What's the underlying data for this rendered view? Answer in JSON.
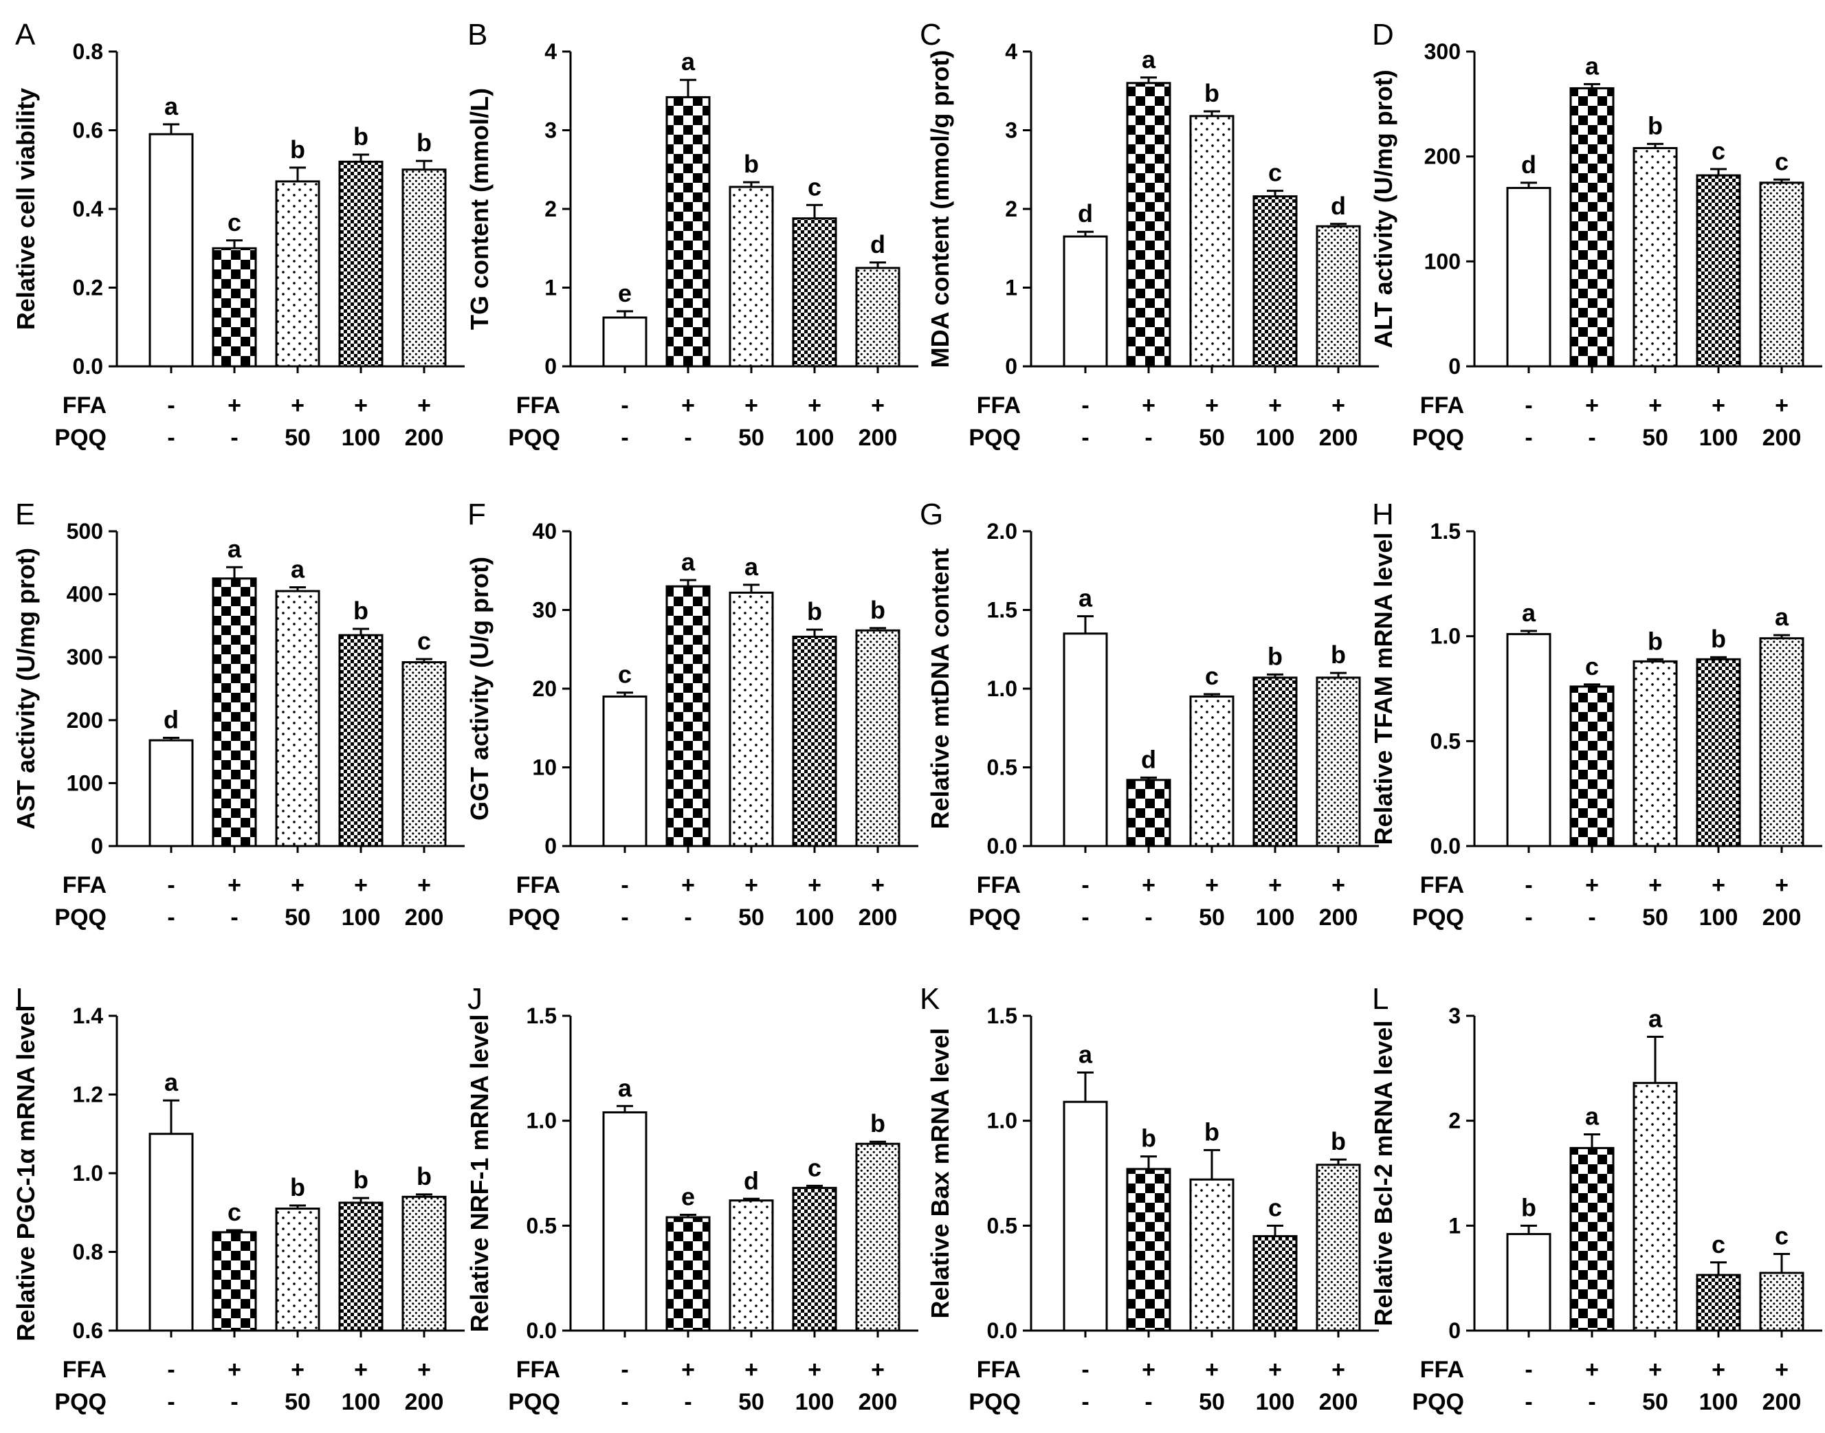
{
  "figure": {
    "conditions": {
      "rows": [
        {
          "name": "FFA",
          "values": [
            "-",
            "+",
            "+",
            "+",
            "+"
          ]
        },
        {
          "name": "PQQ",
          "values": [
            "-",
            "-",
            "50",
            "100",
            "200"
          ]
        }
      ]
    }
  },
  "chart_data": [
    {
      "panel": "A",
      "type": "bar",
      "ylabel": "Relative cell viability",
      "ylim": [
        0,
        0.8
      ],
      "yticks": [
        "0.0",
        "0.2",
        "0.4",
        "0.6",
        "0.8"
      ],
      "categories": [
        "1",
        "2",
        "3",
        "4",
        "5"
      ],
      "values": [
        0.59,
        0.3,
        0.47,
        0.52,
        0.5
      ],
      "errors": [
        0.025,
        0.02,
        0.035,
        0.018,
        0.022
      ],
      "significance": [
        "a",
        "c",
        "b",
        "b",
        "b"
      ]
    },
    {
      "panel": "B",
      "type": "bar",
      "ylabel": "TG content (mmol/L)",
      "ylim": [
        0,
        4
      ],
      "yticks": [
        "0",
        "1",
        "2",
        "3",
        "4"
      ],
      "categories": [
        "1",
        "2",
        "3",
        "4",
        "5"
      ],
      "values": [
        0.62,
        3.42,
        2.28,
        1.88,
        1.25
      ],
      "errors": [
        0.08,
        0.22,
        0.06,
        0.17,
        0.07
      ],
      "significance": [
        "e",
        "a",
        "b",
        "c",
        "d"
      ]
    },
    {
      "panel": "C",
      "type": "bar",
      "ylabel": "MDA content (mmol/g prot)",
      "ylim": [
        0,
        4
      ],
      "yticks": [
        "0",
        "1",
        "2",
        "3",
        "4"
      ],
      "categories": [
        "1",
        "2",
        "3",
        "4",
        "5"
      ],
      "values": [
        1.65,
        3.6,
        3.18,
        2.16,
        1.78
      ],
      "errors": [
        0.06,
        0.07,
        0.06,
        0.07,
        0.03
      ],
      "significance": [
        "d",
        "a",
        "b",
        "c",
        "d"
      ]
    },
    {
      "panel": "D",
      "type": "bar",
      "ylabel": "ALT activity (U/mg prot)",
      "ylim": [
        0,
        300
      ],
      "yticks": [
        "0",
        "100",
        "200",
        "300"
      ],
      "categories": [
        "1",
        "2",
        "3",
        "4",
        "5"
      ],
      "values": [
        170,
        265,
        208,
        182,
        175
      ],
      "errors": [
        5,
        4,
        4,
        6,
        3
      ],
      "significance": [
        "d",
        "a",
        "b",
        "c",
        "c"
      ]
    },
    {
      "panel": "E",
      "type": "bar",
      "ylabel": "AST activity (U/mg prot)",
      "ylim": [
        0,
        500
      ],
      "yticks": [
        "0",
        "100",
        "200",
        "300",
        "400",
        "500"
      ],
      "categories": [
        "1",
        "2",
        "3",
        "4",
        "5"
      ],
      "values": [
        168,
        425,
        405,
        335,
        292
      ],
      "errors": [
        4,
        18,
        6,
        10,
        5
      ],
      "significance": [
        "d",
        "a",
        "a",
        "b",
        "c"
      ]
    },
    {
      "panel": "F",
      "type": "bar",
      "ylabel": "GGT activity (U/g prot)",
      "ylim": [
        0,
        40
      ],
      "yticks": [
        "0",
        "10",
        "20",
        "30",
        "40"
      ],
      "categories": [
        "1",
        "2",
        "3",
        "4",
        "5"
      ],
      "values": [
        19.0,
        33.0,
        32.2,
        26.6,
        27.4
      ],
      "errors": [
        0.5,
        0.8,
        1.0,
        0.9,
        0.3
      ],
      "significance": [
        "c",
        "a",
        "a",
        "b",
        "b"
      ]
    },
    {
      "panel": "G",
      "type": "bar",
      "ylabel": "Relative mtDNA content",
      "ylim": [
        0,
        2.0
      ],
      "yticks": [
        "0.0",
        "0.5",
        "1.0",
        "1.5",
        "2.0"
      ],
      "categories": [
        "1",
        "2",
        "3",
        "4",
        "5"
      ],
      "values": [
        1.35,
        0.42,
        0.95,
        1.07,
        1.07
      ],
      "errors": [
        0.11,
        0.015,
        0.015,
        0.02,
        0.03
      ],
      "significance": [
        "a",
        "d",
        "c",
        "b",
        "b"
      ]
    },
    {
      "panel": "H",
      "type": "bar",
      "ylabel": "Relative TFAM mRNA level",
      "ylim": [
        0,
        1.5
      ],
      "yticks": [
        "0.0",
        "0.5",
        "1.0",
        "1.5"
      ],
      "categories": [
        "1",
        "2",
        "3",
        "4",
        "5"
      ],
      "values": [
        1.01,
        0.76,
        0.88,
        0.89,
        0.99
      ],
      "errors": [
        0.015,
        0.01,
        0.01,
        0.01,
        0.015
      ],
      "significance": [
        "a",
        "c",
        "b",
        "b",
        "a"
      ]
    },
    {
      "panel": "I",
      "type": "bar",
      "ylabel": "Relative PGC-1α mRNA level",
      "ylim": [
        0.6,
        1.4
      ],
      "yticks": [
        "0.6",
        "0.8",
        "1.0",
        "1.2",
        "1.4"
      ],
      "categories": [
        "1",
        "2",
        "3",
        "4",
        "5"
      ],
      "values": [
        1.1,
        0.85,
        0.91,
        0.925,
        0.94
      ],
      "errors": [
        0.085,
        0.005,
        0.008,
        0.012,
        0.006
      ],
      "significance": [
        "a",
        "c",
        "b",
        "b",
        "b"
      ]
    },
    {
      "panel": "J",
      "type": "bar",
      "ylabel": "Relative NRF-1 mRNA level",
      "ylim": [
        0,
        1.5
      ],
      "yticks": [
        "0.0",
        "0.5",
        "1.0",
        "1.5"
      ],
      "categories": [
        "1",
        "2",
        "3",
        "4",
        "5"
      ],
      "values": [
        1.04,
        0.54,
        0.62,
        0.68,
        0.89
      ],
      "errors": [
        0.03,
        0.012,
        0.008,
        0.01,
        0.01
      ],
      "significance": [
        "a",
        "e",
        "d",
        "c",
        "b"
      ]
    },
    {
      "panel": "K",
      "type": "bar",
      "ylabel": "Relative Bax mRNA level",
      "ylim": [
        0,
        1.5
      ],
      "yticks": [
        "0.0",
        "0.5",
        "1.0",
        "1.5"
      ],
      "categories": [
        "1",
        "2",
        "3",
        "4",
        "5"
      ],
      "values": [
        1.09,
        0.77,
        0.72,
        0.45,
        0.79
      ],
      "errors": [
        0.14,
        0.06,
        0.14,
        0.05,
        0.025
      ],
      "significance": [
        "a",
        "b",
        "b",
        "c",
        "b"
      ]
    },
    {
      "panel": "L",
      "type": "bar",
      "ylabel": "Relative Bcl-2 mRNA level",
      "ylim": [
        0,
        3
      ],
      "yticks": [
        "0",
        "1",
        "2",
        "3"
      ],
      "categories": [
        "1",
        "2",
        "3",
        "4",
        "5"
      ],
      "values": [
        0.92,
        1.74,
        2.36,
        0.53,
        0.55
      ],
      "errors": [
        0.08,
        0.13,
        0.44,
        0.12,
        0.18
      ],
      "significance": [
        "b",
        "a",
        "a",
        "c",
        "c"
      ]
    }
  ]
}
